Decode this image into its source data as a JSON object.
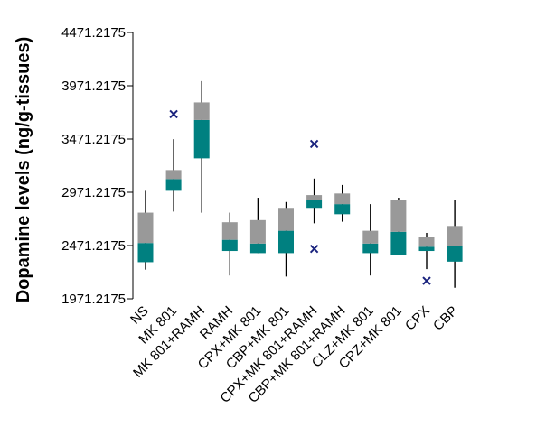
{
  "chart_data": {
    "type": "box",
    "title": "",
    "xlabel": "",
    "ylabel": "Dopamine levels (ng/g-tissues)",
    "ylim": [
      1971.2175,
      4471.2175
    ],
    "yticks": [
      "1971.2175",
      "2471.2175",
      "2971.2175",
      "3471.2175",
      "3971.2175",
      "4471.2175"
    ],
    "grid": false,
    "legend": "none",
    "colors": {
      "lower_box": "#008080",
      "upper_box": "#999999",
      "whisker": "#000000",
      "outlier": "#1a237e"
    },
    "categories": [
      "NS",
      "MK 801",
      "MK 801+RAMH",
      "RAMH",
      "CPX+MK 801",
      "CBP+MK 801",
      "CPX+MK 801+RAMH",
      "CBP+MK 801+RAMH",
      "CLZ+MK 801",
      "CPZ+MK 801",
      "CPX",
      "CBP"
    ],
    "boxes": [
      {
        "min": 2245,
        "q1": 2315,
        "median": 2495,
        "q3": 2780,
        "max": 2985,
        "outliers": []
      },
      {
        "min": 2790,
        "q1": 2985,
        "median": 3095,
        "q3": 3180,
        "max": 3470,
        "outliers": [
          3705
        ]
      },
      {
        "min": 2780,
        "q1": 3290,
        "median": 3650,
        "q3": 3815,
        "max": 4015,
        "outliers": []
      },
      {
        "min": 2190,
        "q1": 2420,
        "median": 2525,
        "q3": 2690,
        "max": 2780,
        "outliers": []
      },
      {
        "min": 2400,
        "q1": 2400,
        "median": 2490,
        "q3": 2710,
        "max": 2920,
        "outliers": []
      },
      {
        "min": 2180,
        "q1": 2400,
        "median": 2610,
        "q3": 2825,
        "max": 2880,
        "outliers": []
      },
      {
        "min": 2680,
        "q1": 2825,
        "median": 2900,
        "q3": 2945,
        "max": 3100,
        "outliers": [
          3425,
          2440
        ]
      },
      {
        "min": 2695,
        "q1": 2765,
        "median": 2860,
        "q3": 2960,
        "max": 3040,
        "outliers": []
      },
      {
        "min": 2190,
        "q1": 2400,
        "median": 2490,
        "q3": 2610,
        "max": 2860,
        "outliers": []
      },
      {
        "min": 2380,
        "q1": 2380,
        "median": 2600,
        "q3": 2900,
        "max": 2920,
        "outliers": []
      },
      {
        "min": 2250,
        "q1": 2420,
        "median": 2460,
        "q3": 2550,
        "max": 2590,
        "outliers": [
          2140
        ]
      },
      {
        "min": 2075,
        "q1": 2320,
        "median": 2465,
        "q3": 2655,
        "max": 2900,
        "outliers": []
      }
    ]
  }
}
